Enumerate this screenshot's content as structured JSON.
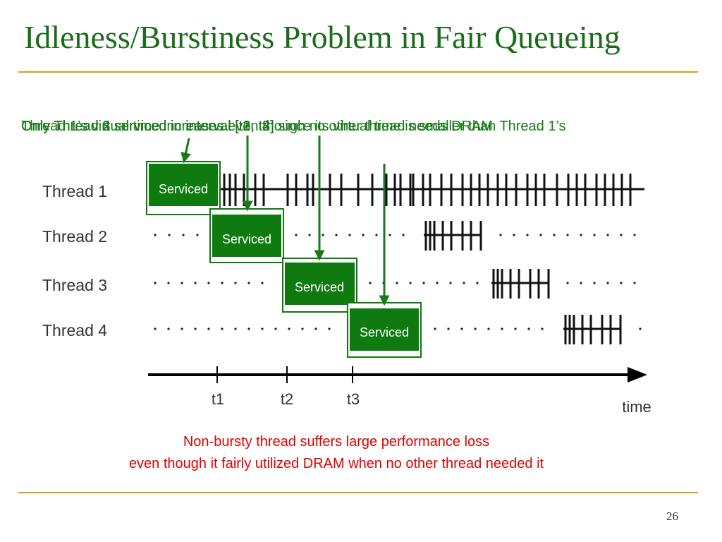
{
  "slide": {
    "title": "Idleness/Burstiness Problem in Fair Queueing",
    "page_number": "26"
  },
  "callouts": [
    "Only Thread 2 serviced in interval [t1, t2] since its virtual time is smaller than Thread 1’s",
    "Thread 1’s virtual time increases even though no other thread needs DRAM",
    "Only Thread 3 serviced in interval [t2, t3]",
    "Only Thread 4 serviced in interval [t3, t4]"
  ],
  "threads": [
    {
      "label": "Thread 1",
      "service_label": "Serviced"
    },
    {
      "label": "Thread 2",
      "service_label": "Serviced"
    },
    {
      "label": "Thread 3",
      "service_label": "Serviced"
    },
    {
      "label": "Thread 4",
      "service_label": "Serviced"
    }
  ],
  "time_axis": {
    "label": "time",
    "ticks": [
      "t1",
      "t2",
      "t3"
    ]
  },
  "conclusion": [
    "Non-bursty thread suffers large performance loss",
    "even though it fairly utilized DRAM when no other thread needed it"
  ],
  "colors": {
    "title": "#1a6b1a",
    "callout": "#1a7a1a",
    "serviced_fill": "#0f7a0f",
    "serviced_border": "#0f7a0f",
    "conclusion": "#e00000",
    "rule": "#d4a017"
  }
}
